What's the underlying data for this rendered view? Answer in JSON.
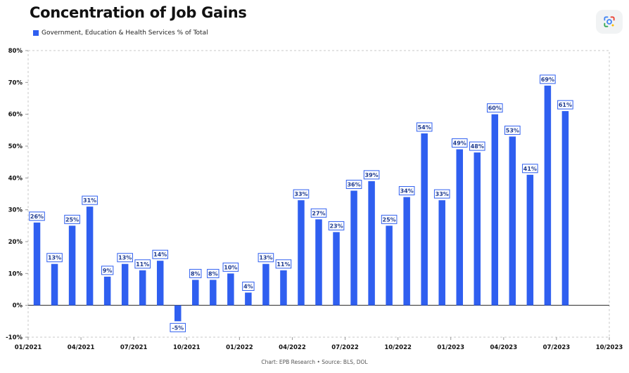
{
  "chart_data": {
    "type": "bar",
    "title": "Concentration of Job Gains",
    "series": [
      {
        "name": "Government, Education & Health Services % of Total",
        "x": [
          "2021-01",
          "2021-02",
          "2021-03",
          "2021-04",
          "2021-05",
          "2021-06",
          "2021-07",
          "2021-08",
          "2021-09",
          "2021-10",
          "2021-11",
          "2021-12",
          "2022-01",
          "2022-02",
          "2022-03",
          "2022-04",
          "2022-05",
          "2022-06",
          "2022-07",
          "2022-08",
          "2022-09",
          "2022-10",
          "2022-11",
          "2022-12",
          "2023-01",
          "2023-02",
          "2023-03",
          "2023-04",
          "2023-05",
          "2023-06",
          "2023-07"
        ],
        "values": [
          26,
          13,
          25,
          31,
          9,
          13,
          11,
          14,
          -5,
          8,
          8,
          10,
          4,
          13,
          11,
          33,
          27,
          23,
          36,
          39,
          25,
          34,
          54,
          33,
          49,
          48,
          60,
          53,
          41,
          69,
          61
        ],
        "labels": [
          "26%",
          "13%",
          "25%",
          "31%",
          "9%",
          "13%",
          "11%",
          "14%",
          "-5%",
          "8%",
          "8%",
          "10%",
          "4%",
          "13%",
          "11%",
          "33%",
          "27%",
          "23%",
          "36%",
          "39%",
          "25%",
          "34%",
          "54%",
          "33%",
          "49%",
          "48%",
          "60%",
          "53%",
          "41%",
          "69%",
          "61%"
        ]
      }
    ],
    "x_ticks": [
      "01/2021",
      "04/2021",
      "07/2021",
      "10/2021",
      "01/2022",
      "04/2022",
      "07/2022",
      "10/2022",
      "01/2023",
      "04/2023",
      "07/2023",
      "10/2023"
    ],
    "y_ticks": [
      "80%",
      "70%",
      "60%",
      "50%",
      "40%",
      "30%",
      "20%",
      "10%",
      "0%",
      "-10%"
    ],
    "ylim": [
      -10,
      80
    ],
    "xlabel": "",
    "ylabel": "",
    "grid": false,
    "legend_position": "top-left",
    "colors": {
      "bar": "#2f5ff0",
      "label_border": "#2f5ff0",
      "label_text": "#1f3b8f"
    },
    "source": "Chart: EPB Research  •  Source: BLS, DOL"
  },
  "ui": {
    "lens_icon": "google-lens-icon"
  }
}
